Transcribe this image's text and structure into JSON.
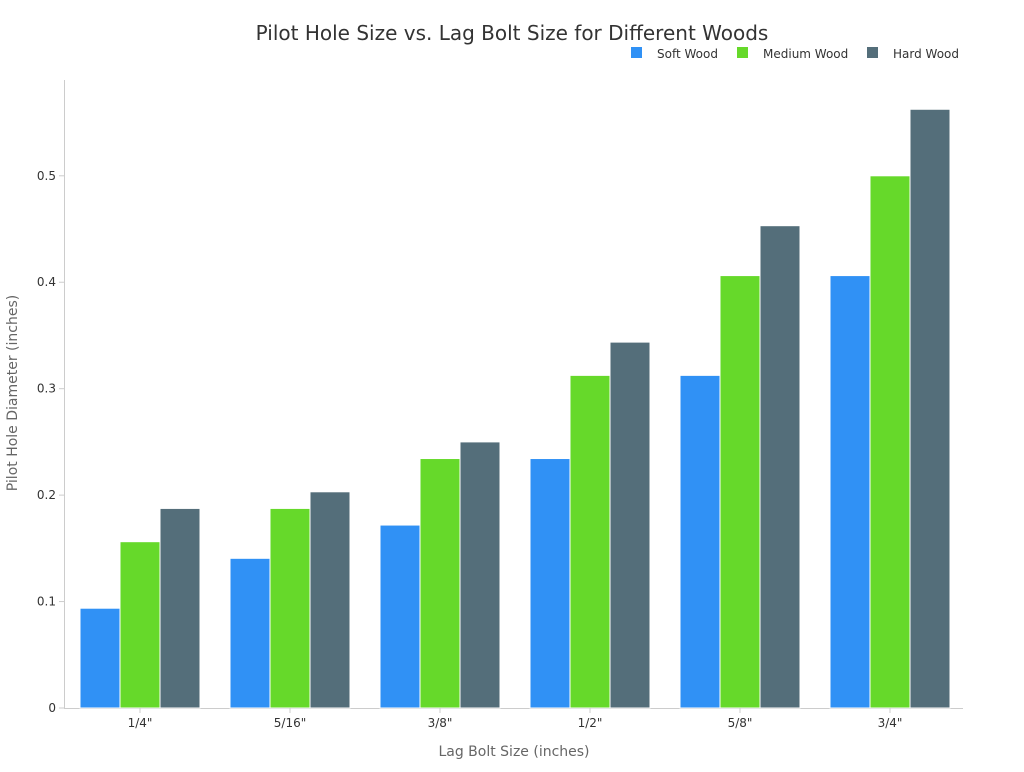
{
  "chart_data": {
    "type": "bar",
    "title": "Pilot Hole Size vs. Lag Bolt Size for Different Woods",
    "xlabel": "Lag Bolt Size (inches)",
    "ylabel": "Pilot Hole Diameter (inches)",
    "categories": [
      "1/4\"",
      "5/16\"",
      "3/8\"",
      "1/2\"",
      "5/8\"",
      "3/4\""
    ],
    "series": [
      {
        "name": "Soft Wood",
        "color": "#3091f5",
        "values": [
          0.09375,
          0.140625,
          0.171875,
          0.234375,
          0.3125,
          0.40625
        ]
      },
      {
        "name": "Medium Wood",
        "color": "#66d92a",
        "values": [
          0.15625,
          0.1875,
          0.234375,
          0.3125,
          0.40625,
          0.5
        ]
      },
      {
        "name": "Hard Wood",
        "color": "#546e7a",
        "values": [
          0.1875,
          0.203125,
          0.25,
          0.34375,
          0.453125,
          0.5625
        ]
      }
    ],
    "yticks": [
      "0",
      "0.1",
      "0.2",
      "0.3",
      "0.4",
      "0.5"
    ],
    "ylim": [
      0,
      0.59
    ],
    "grid": false,
    "legend": "top-right"
  }
}
